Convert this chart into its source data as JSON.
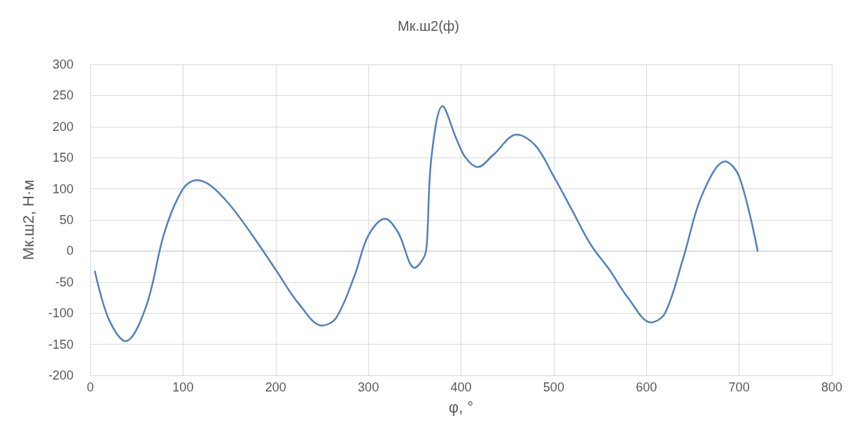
{
  "chart_data": {
    "type": "line",
    "title": "Мк.ш2(ф)",
    "xlabel": "φ, °",
    "ylabel": "Мк.ш2, Н·м",
    "x": [
      5,
      20,
      38,
      60,
      80,
      100,
      115,
      130,
      150,
      175,
      200,
      225,
      250,
      265,
      285,
      300,
      318,
      332,
      350,
      360,
      363,
      368,
      380,
      395,
      405,
      418,
      435,
      460,
      480,
      500,
      520,
      540,
      560,
      580,
      605,
      620,
      640,
      660,
      685,
      700,
      720
    ],
    "series": [
      {
        "color": "#4f81bd",
        "values": [
          -33,
          -110,
          -145,
          -90,
          30,
          100,
          114,
          105,
          75,
          25,
          -30,
          -85,
          -120,
          -108,
          -40,
          25,
          52,
          30,
          -27,
          -10,
          10,
          150,
          233,
          180,
          150,
          135,
          155,
          187,
          170,
          120,
          65,
          10,
          -30,
          -75,
          -115,
          -100,
          -10,
          90,
          144,
          120,
          0
        ]
      }
    ],
    "xlim": [
      0,
      800
    ],
    "xticks": [
      0,
      100,
      200,
      300,
      400,
      500,
      600,
      700,
      800
    ],
    "ylim": [
      -200,
      300
    ],
    "yticks": [
      -200,
      -150,
      -100,
      -50,
      0,
      50,
      100,
      150,
      200,
      250,
      300
    ],
    "grid": true,
    "marker": "none",
    "line_style": "solid"
  }
}
